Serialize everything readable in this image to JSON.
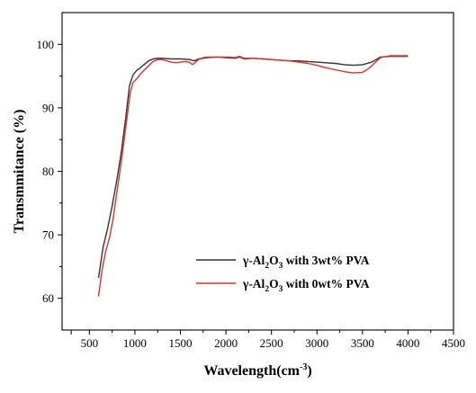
{
  "chart_data": {
    "type": "line",
    "xlabel": {
      "main": "Wavelength(cm",
      "sup": "-3",
      "tail": ")"
    },
    "ylabel": "Transmmitance (%)",
    "xlim": [
      200,
      4500
    ],
    "ylim": [
      55,
      105
    ],
    "xticks": [
      300,
      500,
      1000,
      1500,
      2000,
      2500,
      3000,
      3500,
      4000,
      4500
    ],
    "xtick_labels": [
      "",
      "500",
      "1000",
      "1500",
      "2000",
      "2500",
      "3000",
      "3500",
      "4000",
      "4500"
    ],
    "yticks": [
      60,
      70,
      80,
      90,
      100
    ],
    "ytick_labels": [
      "60",
      "70",
      "80",
      "90",
      "100"
    ],
    "legend_position": "lower-right",
    "series": [
      {
        "legend": {
          "pre": "γ-Al",
          "sub1": "2",
          "mid": "O",
          "sub2": "3",
          "post": " with 3wt% PVA"
        },
        "color": "#333333",
        "x": [
          600,
          650,
          700,
          750,
          800,
          850,
          900,
          940,
          980,
          1020,
          1060,
          1100,
          1150,
          1200,
          1250,
          1300,
          1400,
          1500,
          1600,
          1650,
          1700,
          1750,
          1800,
          1900,
          2000,
          2100,
          2150,
          2200,
          2300,
          2400,
          2500,
          2600,
          2700,
          2800,
          2900,
          3000,
          3100,
          3200,
          3300,
          3400,
          3500,
          3600,
          3650,
          3700,
          3800,
          3900,
          4000
        ],
        "y": [
          63.2,
          68.0,
          71.0,
          74.5,
          78.5,
          83.0,
          88.5,
          93.5,
          95.2,
          95.9,
          96.3,
          96.8,
          97.4,
          97.7,
          97.8,
          97.8,
          97.7,
          97.7,
          97.6,
          97.4,
          97.7,
          97.8,
          97.9,
          98.0,
          97.9,
          97.8,
          98.0,
          97.7,
          97.8,
          97.7,
          97.6,
          97.5,
          97.4,
          97.4,
          97.3,
          97.2,
          97.1,
          97.0,
          96.8,
          96.7,
          96.8,
          97.2,
          97.6,
          98.0,
          98.1,
          98.1,
          98.1
        ]
      },
      {
        "legend": {
          "pre": "γ-Al",
          "sub1": "2",
          "mid": "O",
          "sub2": "3",
          "post": " with 0wt% PVA"
        },
        "color": "#e03030",
        "x": [
          600,
          640,
          680,
          720,
          760,
          800,
          850,
          900,
          950,
          980,
          1020,
          1060,
          1100,
          1150,
          1200,
          1250,
          1300,
          1350,
          1400,
          1450,
          1500,
          1550,
          1600,
          1630,
          1650,
          1700,
          1750,
          1800,
          1900,
          2000,
          2100,
          2150,
          2200,
          2300,
          2400,
          2500,
          2600,
          2700,
          2800,
          2900,
          3000,
          3100,
          3200,
          3300,
          3400,
          3500,
          3550,
          3600,
          3650,
          3700,
          3800,
          3900,
          4000
        ],
        "y": [
          60.3,
          64.5,
          67.5,
          69.5,
          72.5,
          76.5,
          81.5,
          87.0,
          92.5,
          94.0,
          94.6,
          95.3,
          95.9,
          96.6,
          97.3,
          97.6,
          97.6,
          97.4,
          97.2,
          97.1,
          97.2,
          97.3,
          97.2,
          96.8,
          97.0,
          97.6,
          97.9,
          98.0,
          98.0,
          98.0,
          97.9,
          98.1,
          97.8,
          97.8,
          97.7,
          97.6,
          97.5,
          97.4,
          97.2,
          97.0,
          96.7,
          96.3,
          96.0,
          95.7,
          95.5,
          95.6,
          96.0,
          96.6,
          97.3,
          97.9,
          98.2,
          98.2,
          98.2
        ]
      }
    ]
  }
}
